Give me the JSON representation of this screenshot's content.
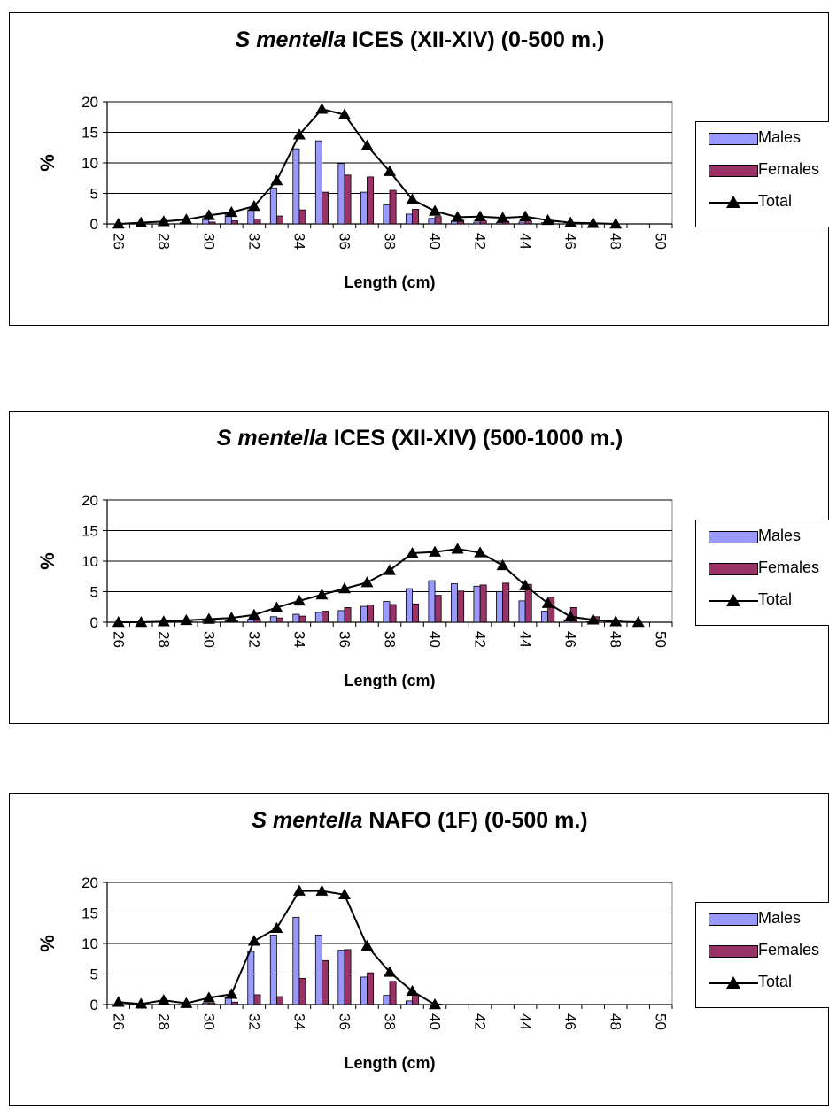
{
  "colors": {
    "males": "#9999FF",
    "females": "#993366",
    "total": "#000000",
    "grid": "#000000"
  },
  "legend_labels": {
    "males": "Males",
    "females": "Females",
    "total": "Total"
  },
  "chart_data": [
    {
      "type": "bar",
      "title_species": "S mentella",
      "title_rest": " ICES (XII-XIV) (0-500 m.)",
      "xlabel": "Length (cm)",
      "ylabel": "%",
      "ylim": [
        0,
        20
      ],
      "yticks": [
        "0",
        "5",
        "10",
        "15",
        "20"
      ],
      "x": [
        26,
        27,
        28,
        29,
        30,
        31,
        32,
        33,
        34,
        35,
        36,
        37,
        38,
        39,
        40,
        41,
        42,
        43,
        44,
        45,
        46,
        47,
        48,
        49,
        50
      ],
      "xtick_labels": [
        "26",
        "28",
        "30",
        "32",
        "34",
        "36",
        "38",
        "40",
        "42",
        "44",
        "46",
        "48",
        "50"
      ],
      "legend_position": "right",
      "series": [
        {
          "name": "Males",
          "type": "bar",
          "values": [
            0,
            0,
            0,
            0.2,
            0.9,
            1.6,
            2.3,
            5.9,
            12.3,
            13.6,
            9.9,
            5.2,
            3.1,
            1.6,
            0.9,
            0.5,
            0.3,
            0.2,
            0.3,
            0.2,
            0,
            0,
            0,
            0,
            0
          ]
        },
        {
          "name": "Females",
          "type": "bar",
          "values": [
            0,
            0,
            0,
            0,
            0.3,
            0.5,
            0.8,
            1.3,
            2.3,
            5.2,
            8.0,
            7.7,
            5.5,
            2.4,
            1.2,
            0.6,
            0.5,
            0.4,
            0.5,
            0.3,
            0.2,
            0.1,
            0,
            0,
            0
          ]
        },
        {
          "name": "Total",
          "type": "line",
          "values": [
            0,
            0.2,
            0.4,
            0.7,
            1.4,
            1.9,
            2.9,
            7.1,
            14.6,
            18.8,
            17.9,
            12.8,
            8.6,
            4.0,
            2.1,
            1.1,
            1.2,
            1.0,
            1.2,
            0.6,
            0.2,
            0.1,
            0,
            null,
            null
          ]
        }
      ]
    },
    {
      "type": "bar",
      "title_species": "S mentella",
      "title_rest": " ICES (XII-XIV) (500-1000 m.)",
      "xlabel": "Length (cm)",
      "ylabel": "%",
      "ylim": [
        0,
        20
      ],
      "yticks": [
        "0",
        "5",
        "10",
        "15",
        "20"
      ],
      "x": [
        26,
        27,
        28,
        29,
        30,
        31,
        32,
        33,
        34,
        35,
        36,
        37,
        38,
        39,
        40,
        41,
        42,
        43,
        44,
        45,
        46,
        47,
        48,
        49,
        50
      ],
      "xtick_labels": [
        "26",
        "28",
        "30",
        "32",
        "34",
        "36",
        "38",
        "40",
        "42",
        "44",
        "46",
        "48",
        "50"
      ],
      "legend_position": "right",
      "series": [
        {
          "name": "Males",
          "type": "bar",
          "values": [
            0,
            0,
            0,
            0.1,
            0.2,
            0.3,
            0.5,
            0.9,
            1.3,
            1.6,
            1.9,
            2.6,
            3.4,
            5.5,
            6.8,
            6.3,
            5.9,
            5.0,
            3.5,
            1.8,
            0.4,
            0.1,
            0,
            0,
            0
          ]
        },
        {
          "name": "Females",
          "type": "bar",
          "values": [
            0,
            0,
            0,
            0.1,
            0.2,
            0.3,
            0.5,
            0.7,
            1.0,
            1.8,
            2.4,
            2.8,
            2.9,
            3.0,
            4.4,
            5.1,
            6.1,
            6.4,
            6.2,
            4.1,
            2.4,
            0.9,
            0.2,
            0,
            0
          ]
        },
        {
          "name": "Total",
          "type": "line",
          "values": [
            0,
            0,
            0.1,
            0.3,
            0.5,
            0.7,
            1.2,
            2.4,
            3.5,
            4.5,
            5.5,
            6.5,
            8.5,
            11.3,
            11.5,
            12.0,
            11.4,
            9.3,
            6.0,
            3.1,
            0.9,
            0.4,
            0.1,
            0,
            null
          ]
        }
      ]
    },
    {
      "type": "bar",
      "title_species": "S mentella",
      "title_rest": " NAFO (1F) (0-500 m.)",
      "xlabel": "Length (cm)",
      "ylabel": "%",
      "ylim": [
        0,
        20
      ],
      "yticks": [
        "0",
        "5",
        "10",
        "15",
        "20"
      ],
      "x": [
        26,
        27,
        28,
        29,
        30,
        31,
        32,
        33,
        34,
        35,
        36,
        37,
        38,
        39,
        40,
        41,
        42,
        43,
        44,
        45,
        46,
        47,
        48,
        49,
        50
      ],
      "xtick_labels": [
        "26",
        "28",
        "30",
        "32",
        "34",
        "36",
        "38",
        "40",
        "42",
        "44",
        "46",
        "48",
        "50"
      ],
      "legend_position": "right",
      "series": [
        {
          "name": "Males",
          "type": "bar",
          "values": [
            0,
            0,
            0,
            0,
            0.2,
            1.1,
            8.7,
            11.4,
            14.3,
            11.4,
            8.9,
            4.5,
            1.5,
            0.6,
            0,
            0,
            0,
            0,
            0,
            0,
            0,
            0,
            0,
            0,
            0
          ]
        },
        {
          "name": "Females",
          "type": "bar",
          "values": [
            0,
            0,
            0,
            0,
            0.2,
            0.4,
            1.6,
            1.3,
            4.3,
            7.2,
            9.0,
            5.2,
            3.8,
            1.6,
            0.1,
            0,
            0,
            0,
            0,
            0,
            0,
            0,
            0,
            0,
            0
          ]
        },
        {
          "name": "Total",
          "type": "line",
          "values": [
            0.4,
            0.1,
            0.7,
            0.2,
            1.1,
            1.7,
            10.4,
            12.5,
            18.6,
            18.6,
            18.0,
            9.6,
            5.3,
            2.2,
            0,
            null,
            null,
            null,
            null,
            null,
            null,
            null,
            null,
            null,
            null
          ]
        }
      ]
    }
  ]
}
